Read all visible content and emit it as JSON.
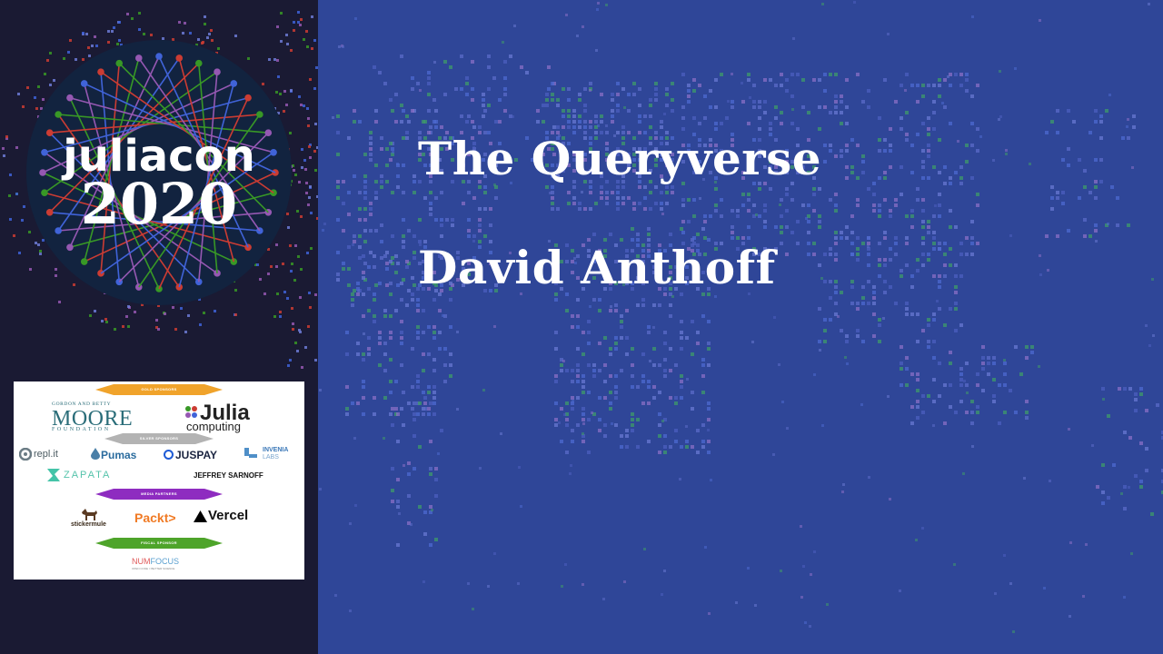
{
  "talk": {
    "title": "The Queryverse",
    "speaker": "David Anthoff"
  },
  "logo": {
    "wordmark": "juliacon",
    "year": "2020"
  },
  "sponsors": {
    "gold_label": "GOLD SPONSORS",
    "gold": {
      "moore_top": "GORDON AND BETTY",
      "moore_main": "MOORE",
      "moore_bottom": "FOUNDATION",
      "julia_main": "Julia",
      "julia_sub": "computing"
    },
    "silver_label": "SILVER SPONSORS",
    "silver": [
      "repl.it",
      "Pumas",
      "JUSPAY",
      "INVENIA",
      "LABS",
      "ZAPATA",
      "JEFFREY SARNOFF"
    ],
    "media_label": "MEDIA PARTNERS",
    "media": [
      "stickermule",
      "Packt>",
      "Vercel"
    ],
    "fiscal_label": "FISCAL SPONSOR",
    "fiscal": {
      "num": "NUM",
      "focus": "FOCUS",
      "tagline": "OPEN CODE = BETTER SCIENCE"
    }
  },
  "colors": {
    "background_blue": "#2f4698",
    "left_panel": "#1a1a33",
    "gold": "#f0a32b",
    "silver": "#b3b3b3",
    "media": "#8e2cc0",
    "fiscal": "#4ea42a"
  }
}
